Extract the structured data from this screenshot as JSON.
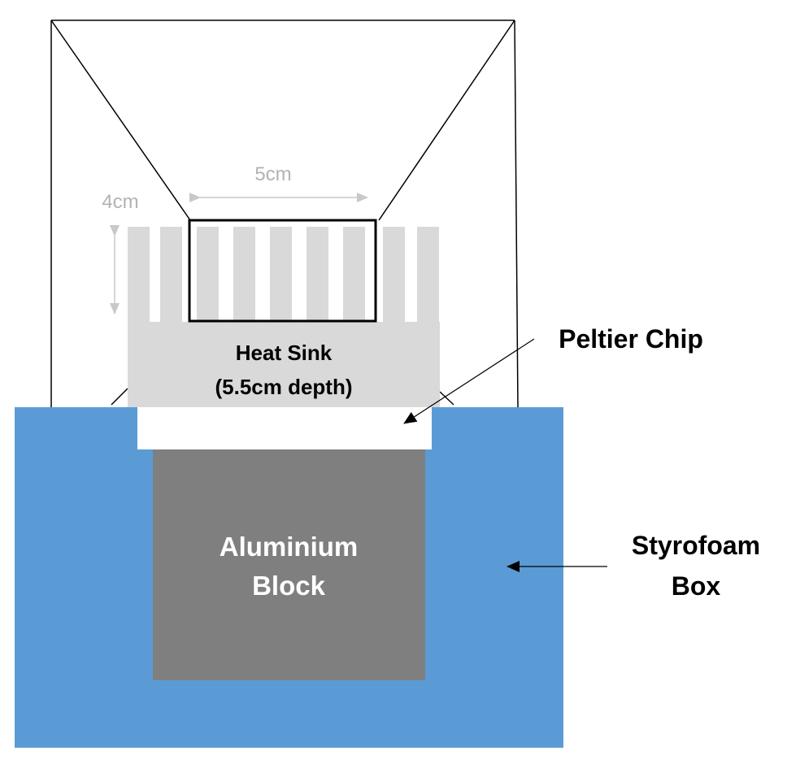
{
  "labels": {
    "width_dimension": "5cm",
    "height_dimension": "4cm",
    "heat_sink_line1": "Heat Sink",
    "heat_sink_line2": "(5.5cm depth)",
    "peltier": "Peltier Chip",
    "aluminium_line1": "Aluminium",
    "aluminium_line2": "Block",
    "styrofoam_line1": "Styrofoam",
    "styrofoam_line2": "Box"
  },
  "colors": {
    "styrofoam": "#5b9bd5",
    "aluminium": "#7f7f7f",
    "heat_sink": "#d9d9d9",
    "peltier": "#ffffff",
    "outline": "#000000",
    "dimension": "#c8c8c8",
    "dimension_text": "#b3b3b3"
  }
}
